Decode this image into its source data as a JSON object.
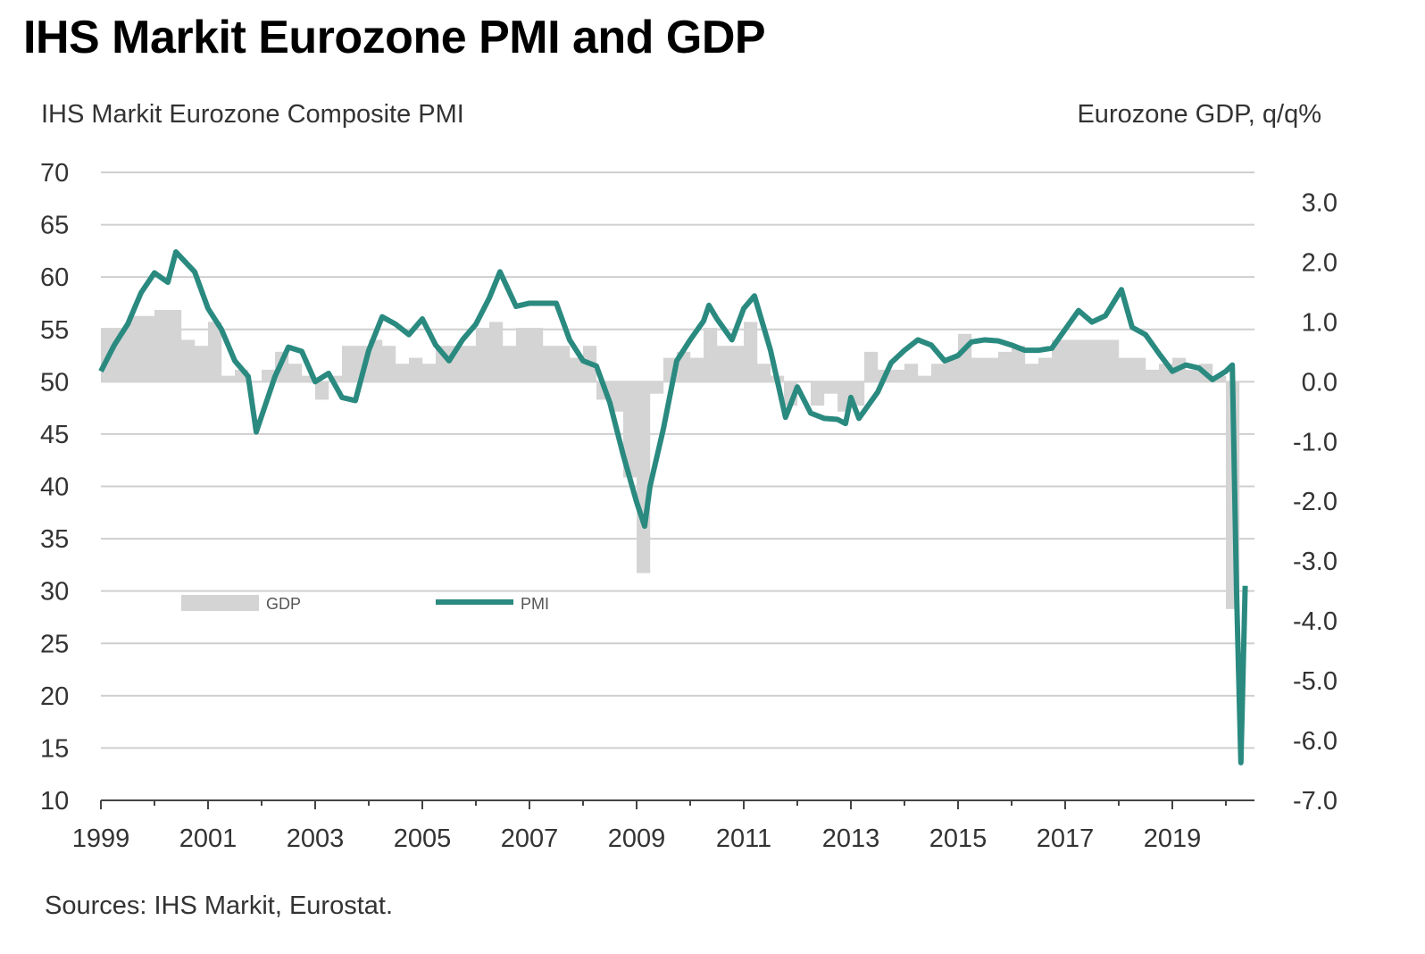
{
  "chart_data": {
    "type": "bar+line",
    "title": "IHS Markit Eurozone PMI and GDP",
    "ylabel_left": "IHS Markit Eurozone Composite PMI",
    "ylabel_right": "Eurozone GDP, q/q%",
    "source": "Sources: IHS Markit, Eurostat.",
    "ylim_left": [
      10,
      70
    ],
    "ylim_right": [
      -7.0,
      3.5
    ],
    "xlim": [
      1999,
      2020.5
    ],
    "yticks_left": [
      "70",
      "65",
      "60",
      "55",
      "50",
      "45",
      "40",
      "35",
      "30",
      "25",
      "20",
      "15",
      "10"
    ],
    "yticks_right": [
      "3.0",
      "2.0",
      "1.0",
      "0.0",
      "-1.0",
      "-2.0",
      "-3.0",
      "-4.0",
      "-5.0",
      "-6.0",
      "-7.0"
    ],
    "xticks": [
      "1999",
      "2001",
      "2003",
      "2005",
      "2007",
      "2009",
      "2011",
      "2013",
      "2015",
      "2017",
      "2019"
    ],
    "legend": {
      "gdp": "GDP",
      "pmi": "PMI",
      "placement": "middle-left"
    },
    "colors": {
      "pmi": "#2a8a80",
      "gdp": "#d4d4d4",
      "grid": "#cfcfcf"
    },
    "grid": true,
    "series": [
      {
        "name": "PMI",
        "axis": "left",
        "x": [
          1999.0,
          1999.25,
          1999.5,
          1999.75,
          2000.0,
          2000.25,
          2000.4,
          2000.75,
          2001.0,
          2001.25,
          2001.5,
          2001.75,
          2001.9,
          2002.25,
          2002.5,
          2002.75,
          2003.0,
          2003.25,
          2003.5,
          2003.75,
          2004.0,
          2004.25,
          2004.5,
          2004.75,
          2005.0,
          2005.25,
          2005.5,
          2005.75,
          2006.0,
          2006.25,
          2006.45,
          2006.75,
          2007.0,
          2007.25,
          2007.5,
          2007.75,
          2008.0,
          2008.25,
          2008.5,
          2008.75,
          2009.0,
          2009.15,
          2009.25,
          2009.5,
          2009.75,
          2010.0,
          2010.25,
          2010.35,
          2010.5,
          2010.78,
          2011.0,
          2011.2,
          2011.5,
          2011.78,
          2012.0,
          2012.25,
          2012.5,
          2012.75,
          2012.9,
          2013.0,
          2013.15,
          2013.5,
          2013.75,
          2014.0,
          2014.25,
          2014.5,
          2014.75,
          2015.0,
          2015.25,
          2015.5,
          2015.75,
          2016.0,
          2016.25,
          2016.5,
          2016.75,
          2017.0,
          2017.25,
          2017.5,
          2017.75,
          2018.05,
          2018.25,
          2018.5,
          2018.75,
          2019.0,
          2019.25,
          2019.5,
          2019.75,
          2020.0,
          2020.12,
          2020.2,
          2020.28,
          2020.36
        ],
        "values": [
          51,
          53.5,
          55.5,
          58.5,
          60.4,
          59.5,
          62.4,
          60.5,
          57,
          55,
          52,
          50.5,
          45.2,
          50.5,
          53.3,
          52.9,
          50,
          50.8,
          48.5,
          48.2,
          53,
          56.2,
          55.5,
          54.5,
          56,
          53.5,
          52,
          54,
          55.5,
          58,
          60.5,
          57.2,
          57.5,
          57.5,
          57.5,
          54,
          52,
          51.5,
          48,
          43,
          38.5,
          36.2,
          40,
          45.5,
          52,
          54,
          55.8,
          57.3,
          56,
          54,
          57,
          58.2,
          53,
          46.6,
          49.5,
          47,
          46.5,
          46.4,
          46,
          48.5,
          46.5,
          49,
          51.8,
          53,
          54,
          53.5,
          52,
          52.5,
          53.8,
          54,
          53.9,
          53.5,
          53,
          53,
          53.2,
          55,
          56.8,
          55.7,
          56.3,
          58.8,
          55.2,
          54.5,
          52.7,
          51,
          51.6,
          51.3,
          50.2,
          51,
          51.6,
          29.7,
          13.6,
          30.5
        ]
      },
      {
        "name": "GDP",
        "axis": "right",
        "start": 1999.0,
        "frequency": "quarterly",
        "values": [
          0.9,
          0.9,
          1.1,
          1.1,
          1.2,
          1.2,
          0.7,
          0.6,
          1.0,
          0.1,
          0.2,
          0.0,
          0.2,
          0.5,
          0.3,
          0.1,
          -0.3,
          0.1,
          0.6,
          0.6,
          0.7,
          0.6,
          0.3,
          0.4,
          0.3,
          0.6,
          0.6,
          0.6,
          0.9,
          1.0,
          0.6,
          0.9,
          0.9,
          0.6,
          0.6,
          0.4,
          0.6,
          -0.3,
          -0.5,
          -1.6,
          -3.2,
          -0.2,
          0.4,
          0.5,
          0.4,
          0.9,
          0.6,
          0.6,
          1.0,
          0.3,
          0.1,
          -0.4,
          0.0,
          -0.4,
          -0.2,
          -0.5,
          -0.4,
          0.5,
          0.2,
          0.2,
          0.3,
          0.1,
          0.3,
          0.4,
          0.8,
          0.4,
          0.4,
          0.5,
          0.6,
          0.3,
          0.4,
          0.7,
          0.7,
          0.7,
          0.7,
          0.7,
          0.4,
          0.4,
          0.2,
          0.3,
          0.4,
          0.2,
          0.3,
          0.1,
          -3.8
        ]
      }
    ]
  }
}
